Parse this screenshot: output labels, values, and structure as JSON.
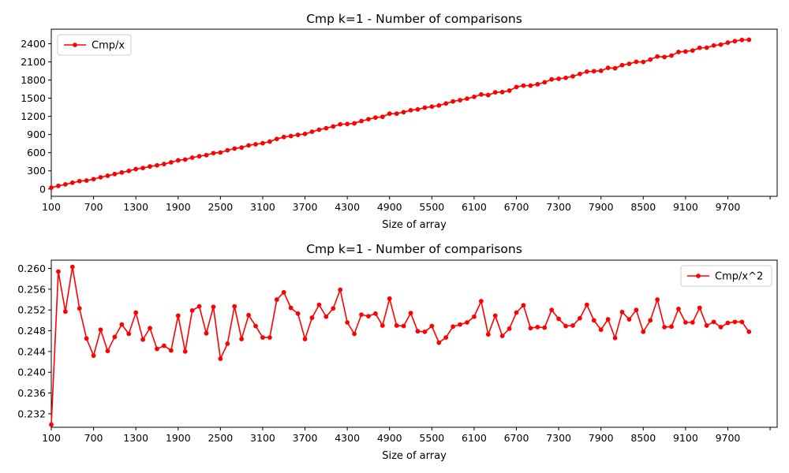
{
  "chart_data": [
    {
      "type": "line",
      "title": "Cmp k=1 - Number of comparisons",
      "xlabel": "Size of array",
      "ylabel": "",
      "legend_position": "top-left",
      "grid": false,
      "color": "#ff0000",
      "xlim": [
        100,
        10400
      ],
      "ylim": [
        -120,
        2640
      ],
      "x_ticks": [
        100,
        700,
        1300,
        1900,
        2500,
        3100,
        3700,
        4300,
        4900,
        5500,
        6100,
        6700,
        7300,
        7900,
        8500,
        9100,
        9700,
        10300
      ],
      "x_tick_labels": [
        "100",
        "700",
        "1300",
        "1900",
        "2500",
        "3100",
        "3700",
        "4300",
        "4900",
        "5500",
        "6100",
        "6700",
        "7300",
        "7900",
        "8500",
        "9100",
        "9700",
        ""
      ],
      "y_ticks": [
        0,
        300,
        600,
        900,
        1200,
        1500,
        1800,
        2100,
        2400
      ],
      "y_tick_labels": [
        "0",
        "300",
        "600",
        "900",
        "1200",
        "1500",
        "1800",
        "2100",
        "2400"
      ],
      "series": [
        {
          "name": "Cmp/x",
          "x_start": 100,
          "x_step": 100,
          "values": [
            23,
            52,
            77,
            104,
            131,
            140,
            163,
            194,
            219,
            247,
            273,
            299,
            330,
            347,
            372,
            391,
            413,
            441,
            473,
            487,
            518,
            542,
            560,
            593,
            603,
            640,
            668,
            685,
            721,
            739,
            757,
            783,
            827,
            859,
            875,
            895,
            910,
            946,
            980,
            1004,
            1033,
            1068,
            1074,
            1085,
            1123,
            1153,
            1180,
            1193,
            1245,
            1245,
            1269,
            1301,
            1315,
            1344,
            1361,
            1380,
            1412,
            1446,
            1468,
            1493,
            1522,
            1562,
            1552,
            1597,
            1601,
            1625,
            1685,
            1708,
            1708,
            1730,
            1763,
            1811,
            1821,
            1836,
            1861,
            1900,
            1939,
            1946,
            1953,
            2001,
            1995,
            2046,
            2067,
            2101,
            2098,
            2138,
            2189,
            2180,
            2204,
            2263,
            2271,
            2287,
            2332,
            2334,
            2370,
            2385,
            2418,
            2442,
            2462,
            2465
          ]
        }
      ]
    },
    {
      "type": "line",
      "title": "Cmp k=1 - Number of comparisons",
      "xlabel": "Size of array",
      "ylabel": "",
      "legend_position": "top-right",
      "grid": false,
      "color": "#ff0000",
      "xlim": [
        100,
        10400
      ],
      "ylim": [
        0.2294,
        0.2616
      ],
      "x_ticks": [
        100,
        700,
        1300,
        1900,
        2500,
        3100,
        3700,
        4300,
        4900,
        5500,
        6100,
        6700,
        7300,
        7900,
        8500,
        9100,
        9700,
        10300
      ],
      "x_tick_labels": [
        "100",
        "700",
        "1300",
        "1900",
        "2500",
        "3100",
        "3700",
        "4300",
        "4900",
        "5500",
        "6100",
        "6700",
        "7300",
        "7900",
        "8500",
        "9100",
        "9700",
        ""
      ],
      "y_ticks": [
        0.232,
        0.236,
        0.24,
        0.244,
        0.248,
        0.252,
        0.256,
        0.26
      ],
      "y_tick_labels": [
        "0.232",
        "0.236",
        "0.240",
        "0.244",
        "0.248",
        "0.252",
        "0.256",
        "0.260"
      ],
      "series": [
        {
          "name": "Cmp/x^2",
          "x_start": 100,
          "x_step": 100,
          "values": [
            0.2299,
            0.2594,
            0.2517,
            0.2603,
            0.2523,
            0.2465,
            0.2432,
            0.2482,
            0.2441,
            0.2468,
            0.2492,
            0.2474,
            0.2515,
            0.2463,
            0.2485,
            0.2445,
            0.2451,
            0.2442,
            0.2509,
            0.244,
            0.2519,
            0.2527,
            0.2475,
            0.2526,
            0.2426,
            0.2455,
            0.2527,
            0.2464,
            0.251,
            0.2489,
            0.2467,
            0.2467,
            0.254,
            0.2554,
            0.2524,
            0.2513,
            0.2464,
            0.2505,
            0.253,
            0.2507,
            0.2523,
            0.2559,
            0.2496,
            0.2474,
            0.2511,
            0.2508,
            0.2513,
            0.249,
            0.2542,
            0.249,
            0.2489,
            0.2514,
            0.2479,
            0.2478,
            0.2489,
            0.2457,
            0.2467,
            0.2488,
            0.2492,
            0.2496,
            0.2507,
            0.2537,
            0.2473,
            0.2509,
            0.247,
            0.2484,
            0.2515,
            0.2529,
            0.2485,
            0.2487,
            0.2486,
            0.252,
            0.2503,
            0.2489,
            0.249,
            0.2504,
            0.253,
            0.25,
            0.2482,
            0.2502,
            0.2466,
            0.2516,
            0.2502,
            0.252,
            0.2478,
            0.25,
            0.254,
            0.2487,
            0.2488,
            0.2522,
            0.2496,
            0.2496,
            0.2524,
            0.249,
            0.2497,
            0.2487,
            0.2495,
            0.2497,
            0.2497,
            0.2478
          ]
        }
      ]
    }
  ]
}
